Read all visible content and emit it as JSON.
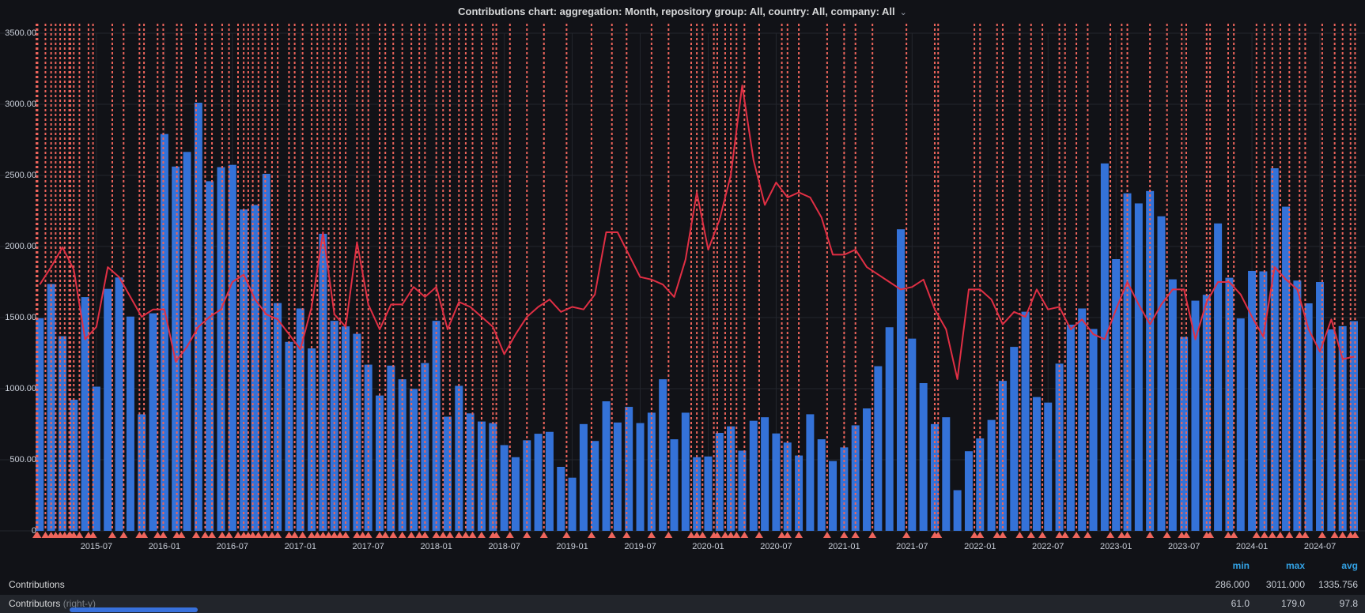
{
  "title": {
    "text": "Contributions chart: aggregation: Month, repository group: All, country: All, company: All",
    "chevron": "⌄"
  },
  "colors": {
    "background": "#111217",
    "grid": "#24262d",
    "bar": "#3472D8",
    "line": "#E02F44",
    "annotation": "#EE655C",
    "axis_text": "#c7ccd6",
    "legend_header": "#33a2e5"
  },
  "chart_data": {
    "type": "bar",
    "title": "Contributions chart: aggregation: Month, repository group: All, country: All, company: All",
    "xlabel": "",
    "ylabel": "",
    "left_axis": {
      "min": 0,
      "max": 3500,
      "tick_labels": [
        "3500.00",
        "3000.00",
        "2500.00",
        "2000.00",
        "1500.00",
        "1000.00",
        "500.00",
        "0"
      ],
      "grid": true
    },
    "right_axis": {
      "min": 0,
      "max": 200,
      "visible_labels": false,
      "scale_to_left": 17.5
    },
    "x_ticks": [
      "2015-07",
      "2016-01",
      "2016-07",
      "2017-01",
      "2017-07",
      "2018-01",
      "2018-07",
      "2019-01",
      "2019-07",
      "2020-01",
      "2020-07",
      "2021-01",
      "2021-07",
      "2022-01",
      "2022-07",
      "2023-01",
      "2023-07",
      "2024-01",
      "2024-07"
    ],
    "categories": [
      "2015-02",
      "2015-03",
      "2015-04",
      "2015-05",
      "2015-06",
      "2015-07",
      "2015-08",
      "2015-09",
      "2015-10",
      "2015-11",
      "2015-12",
      "2016-01",
      "2016-02",
      "2016-03",
      "2016-04",
      "2016-05",
      "2016-06",
      "2016-07",
      "2016-08",
      "2016-09",
      "2016-10",
      "2016-11",
      "2016-12",
      "2017-01",
      "2017-02",
      "2017-03",
      "2017-04",
      "2017-05",
      "2017-06",
      "2017-07",
      "2017-08",
      "2017-09",
      "2017-10",
      "2017-11",
      "2017-12",
      "2018-01",
      "2018-02",
      "2018-03",
      "2018-04",
      "2018-05",
      "2018-06",
      "2018-07",
      "2018-08",
      "2018-09",
      "2018-10",
      "2018-11",
      "2018-12",
      "2019-01",
      "2019-02",
      "2019-03",
      "2019-04",
      "2019-05",
      "2019-06",
      "2019-07",
      "2019-08",
      "2019-09",
      "2019-10",
      "2019-11",
      "2019-12",
      "2020-01",
      "2020-02",
      "2020-03",
      "2020-04",
      "2020-05",
      "2020-06",
      "2020-07",
      "2020-08",
      "2020-09",
      "2020-10",
      "2020-11",
      "2020-12",
      "2021-01",
      "2021-02",
      "2021-03",
      "2021-04",
      "2021-05",
      "2021-06",
      "2021-07",
      "2021-08",
      "2021-09",
      "2021-10",
      "2021-11",
      "2021-12",
      "2022-01",
      "2022-02",
      "2022-03",
      "2022-04",
      "2022-05",
      "2022-06",
      "2022-07",
      "2022-08",
      "2022-09",
      "2022-10",
      "2022-11",
      "2022-12",
      "2023-01",
      "2023-02",
      "2023-03",
      "2023-04",
      "2023-05",
      "2023-06",
      "2023-07",
      "2023-08",
      "2023-09",
      "2023-10",
      "2023-11",
      "2023-12",
      "2024-01",
      "2024-02",
      "2024-03",
      "2024-04",
      "2024-05",
      "2024-06",
      "2024-07",
      "2024-08",
      "2024-09",
      "2024-10"
    ],
    "series": [
      {
        "name": "Contributions",
        "type": "bar",
        "axis": "left",
        "color": "#3472D8",
        "values": [
          1495,
          1736,
          1369,
          922,
          1644,
          1014,
          1702,
          1782,
          1507,
          820,
          1530,
          2791,
          2562,
          2665,
          3011,
          2459,
          2558,
          2574,
          2260,
          2292,
          2511,
          1602,
          1329,
          1564,
          1283,
          2089,
          1477,
          1438,
          1386,
          1169,
          952,
          1162,
          1066,
          998,
          1180,
          1477,
          803,
          1020,
          826,
          769,
          758,
          603,
          518,
          637,
          683,
          696,
          450,
          374,
          751,
          632,
          911,
          762,
          872,
          758,
          831,
          1066,
          644,
          831,
          518,
          523,
          689,
          735,
          564,
          774,
          799,
          685,
          621,
          530,
          820,
          644,
          491,
          587,
          742,
          861,
          1158,
          1432,
          2121,
          1352,
          1039,
          751,
          799,
          286,
          560,
          650,
          780,
          1055,
          1294,
          1541,
          941,
          902,
          1176,
          1450,
          1564,
          1420,
          2584,
          1911,
          2374,
          2303,
          2390,
          2212,
          1769,
          1363,
          1619,
          1660,
          2162,
          1780,
          1494,
          1828,
          1825,
          2550,
          2280,
          1760,
          1600,
          1750,
          1417,
          1440,
          1475
        ]
      },
      {
        "name": "Contributors",
        "type": "line",
        "axis": "right",
        "color": "#E02F44",
        "values": [
          99,
          106,
          114,
          105,
          77,
          82,
          106,
          102,
          94,
          86,
          89,
          89,
          68,
          74,
          82,
          86,
          89,
          100,
          103,
          93,
          87,
          85,
          79,
          73,
          90,
          120,
          87,
          82,
          116,
          91,
          81,
          91,
          91,
          98,
          94,
          98,
          81,
          92,
          90,
          86,
          82,
          71,
          79,
          86,
          90,
          93,
          88,
          90,
          89,
          95,
          120,
          120,
          111,
          102,
          101,
          99,
          94,
          109,
          136,
          113,
          125,
          143,
          179,
          149,
          131,
          140,
          134,
          136,
          134,
          126,
          111,
          111,
          113,
          106,
          103,
          100,
          97,
          98,
          101,
          89,
          81,
          61,
          97,
          97,
          93,
          83,
          88,
          86,
          97,
          89,
          90,
          81,
          85,
          79,
          77,
          89,
          100,
          91,
          83,
          91,
          97,
          97,
          77,
          92,
          100,
          100,
          95,
          86,
          78,
          106,
          101,
          97,
          81,
          72,
          85,
          69,
          70
        ]
      }
    ],
    "annotations": {
      "style": "dashed-vertical-with-triangle",
      "color": "#EE655C",
      "positions": [
        -0.3,
        -0.2,
        0.5,
        1.0,
        1.4,
        1.8,
        2.2,
        2.6,
        2.7,
        3.0,
        3.5,
        4.3,
        4.7,
        6.4,
        7.4,
        8.8,
        9.2,
        10.4,
        10.9,
        12.1,
        12.5,
        13.8,
        14.6,
        15.2,
        16.1,
        16.7,
        17.5,
        18,
        18.4,
        18.8,
        19.3,
        19.9,
        20.5,
        21,
        22,
        22.5,
        23.2,
        24,
        24.5,
        25,
        25.5,
        26,
        26.5,
        27,
        28,
        28.5,
        29,
        30,
        30.5,
        31.2,
        32,
        32.8,
        33.5,
        34,
        35,
        35.6,
        36.2,
        37,
        37.6,
        38.2,
        39,
        40,
        40.3,
        41.5,
        43,
        44.5,
        46.5,
        48.7,
        50.5,
        51.8,
        54,
        55.5,
        57.5,
        58,
        58.5,
        59.5,
        59.8,
        60.5,
        61,
        61.5,
        62.2,
        63.5,
        65.5,
        66,
        67,
        69.5,
        71,
        72,
        73.5,
        76.5,
        79,
        79.3,
        82.5,
        83,
        84.5,
        85,
        86.5,
        87.5,
        88.5,
        90,
        90.5,
        91.5,
        92.5,
        94.5,
        95.5,
        96,
        98,
        99.5,
        100.8,
        101.2,
        103,
        103.3,
        104.9,
        105.4,
        107.4,
        108.1,
        108.8,
        109.5,
        110.3,
        111.2,
        111.7,
        113.2,
        114.3,
        115,
        115.7,
        116.1
      ]
    },
    "legend_position": "bottom-table"
  },
  "legend": {
    "headers": [
      "min",
      "max",
      "avg"
    ],
    "rows": [
      {
        "label": "Contributions",
        "suffix": "",
        "min": "286.000",
        "max": "3011.000",
        "avg": "1335.756"
      },
      {
        "label": "Contributors",
        "suffix": "(right-y)",
        "min": "61.0",
        "max": "179.0",
        "avg": "97.8"
      }
    ]
  }
}
